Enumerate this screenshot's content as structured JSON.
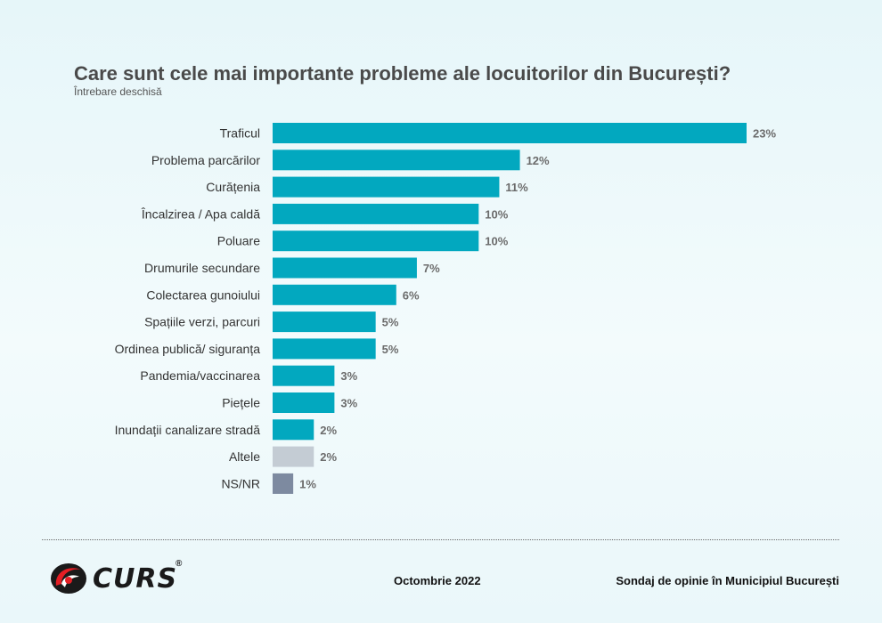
{
  "chart_data": {
    "type": "bar",
    "orientation": "horizontal",
    "title": "Care sunt cele mai importante probleme ale locuitorilor din București?",
    "subtitle": "Întrebare deschisă",
    "xlabel": "",
    "ylabel": "",
    "xlim": [
      0,
      23
    ],
    "grid": false,
    "legend": "none",
    "categories": [
      "Traficul",
      "Problema parcărilor",
      "Curățenia",
      "Încalzirea / Apa caldă",
      "Poluare",
      "Drumurile secundare",
      "Colectarea gunoiului",
      "Spațiile verzi, parcuri",
      "Ordinea publică/ siguranța",
      "Pandemia/vaccinarea",
      "Piețele",
      "Inundații canalizare stradă",
      "Altele",
      "NS/NR"
    ],
    "values": [
      23,
      12,
      11,
      10,
      10,
      7,
      6,
      5,
      5,
      3,
      3,
      2,
      2,
      1
    ],
    "value_labels": [
      "23%",
      "12%",
      "11%",
      "10%",
      "10%",
      "7%",
      "6%",
      "5%",
      "5%",
      "3%",
      "3%",
      "2%",
      "2%",
      "1%"
    ],
    "colors": [
      "#02a8bf",
      "#02a8bf",
      "#02a8bf",
      "#02a8bf",
      "#02a8bf",
      "#02a8bf",
      "#02a8bf",
      "#02a8bf",
      "#02a8bf",
      "#02a8bf",
      "#02a8bf",
      "#02a8bf",
      "#c4ccd4",
      "#7d8aa0"
    ]
  },
  "footer": {
    "logo_text": "CURS",
    "logo_reg": "®",
    "date": "Octombrie 2022",
    "source": "Sondaj de opinie în Municipiul București"
  }
}
